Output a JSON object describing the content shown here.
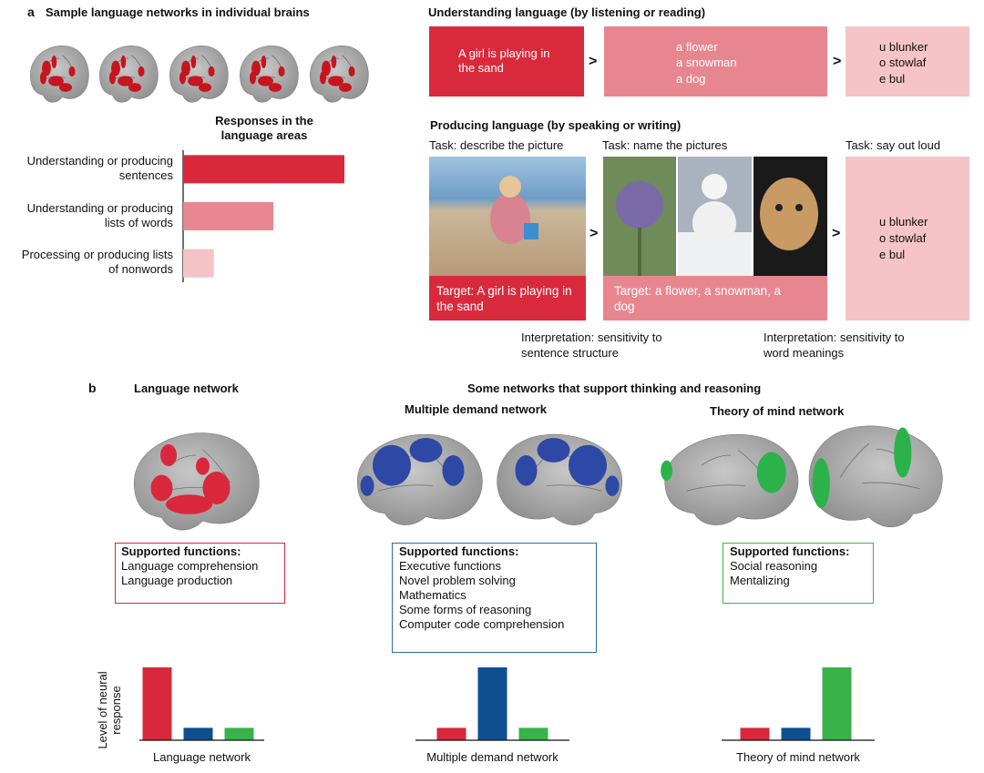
{
  "panel_a": {
    "label": "a",
    "title": "Sample language networks in individual brains",
    "understanding": {
      "title": "Understanding language (by listening or reading)",
      "sentence": "A girl is playing in the sand",
      "words": [
        "a flower",
        "a snowman",
        "a dog"
      ],
      "nonwords": [
        "u blunker",
        "o stowlaf",
        "e bul"
      ]
    },
    "comparison": ">",
    "producing": {
      "title": "Producing language (by speaking or writing)",
      "tasks": [
        "Task: describe the picture",
        "Task: name the pictures",
        "Task: say out loud"
      ],
      "targets": [
        "Target: A girl is playing in the sand",
        "Target: a flower, a snowman, a dog"
      ],
      "nonwords": [
        "u blunker",
        "o stowlaf",
        "e bul"
      ]
    },
    "interpretations": [
      "Interpretation: sensitivity to sentence structure",
      "Interpretation: sensitivity to word meanings"
    ]
  },
  "panel_b": {
    "label": "b",
    "group_title": "Some networks that support thinking and reasoning",
    "networks": [
      {
        "name": "Language network",
        "functions_title": "Supported functions:",
        "functions": [
          "Language comprehension",
          "Language production"
        ]
      },
      {
        "name": "Multiple demand network",
        "functions_title": "Supported functions:",
        "functions": [
          "Executive functions",
          "Novel problem solving",
          "Mathematics",
          "Some forms of reasoning",
          "Computer code comprehension"
        ]
      },
      {
        "name": "Theory of mind network",
        "functions_title": "Supported functions:",
        "functions": [
          "Social reasoning",
          "Mentalizing"
        ]
      }
    ]
  },
  "chart_data": [
    {
      "type": "hbar",
      "title": "Responses in the language areas",
      "categories": [
        "Understanding or producing sentences",
        "Understanding or producing lists of words",
        "Processing or producing lists of nonwords"
      ],
      "values": [
        1,
        0.56,
        0.19
      ],
      "colors": [
        "#d9283b",
        "#e8878f",
        "#f5c2c5"
      ],
      "xlim": [
        0,
        1
      ]
    },
    {
      "type": "bar",
      "xlabel": "Language network",
      "ylabel": "Level of neural response",
      "values": [
        1,
        0.17,
        0.17
      ],
      "colors": [
        "#d9283b",
        "#0e4f91",
        "#37b34a"
      ],
      "ylim": [
        0,
        1
      ]
    },
    {
      "type": "bar",
      "xlabel": "Multiple demand network",
      "values": [
        0.17,
        1,
        0.17
      ],
      "colors": [
        "#d9283b",
        "#0e4f91",
        "#37b34a"
      ],
      "ylim": [
        0,
        1
      ]
    },
    {
      "type": "bar",
      "xlabel": "Theory of mind network",
      "values": [
        0.17,
        0.17,
        1
      ],
      "colors": [
        "#d9283b",
        "#0e4f91",
        "#37b34a"
      ],
      "ylim": [
        0,
        1
      ]
    }
  ]
}
